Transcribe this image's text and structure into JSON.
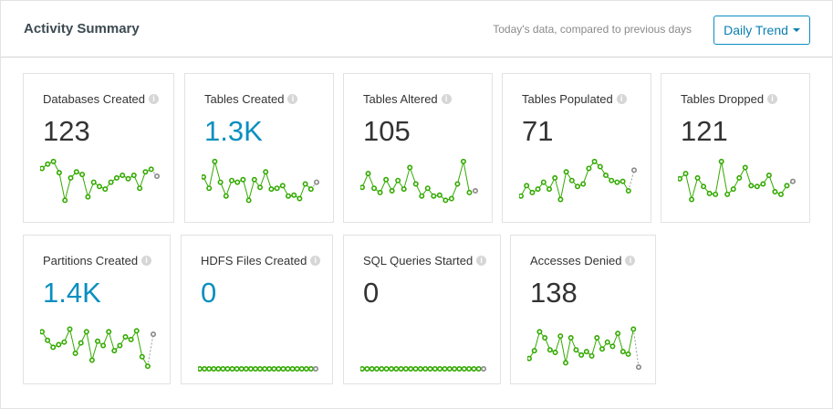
{
  "header": {
    "title": "Activity Summary",
    "subtitle": "Today's data, compared to previous days",
    "trend_button": "Daily Trend"
  },
  "colors": {
    "accent": "#0a8fbf",
    "spark_line": "#33aa00",
    "spark_today": "#888888"
  },
  "cards": [
    {
      "label": "Databases Created",
      "value": "123",
      "highlight": false,
      "trend": [
        45,
        50,
        53,
        40,
        8,
        34,
        41,
        38,
        12,
        29,
        24,
        21,
        29,
        34,
        37,
        33,
        37,
        22,
        41,
        44,
        36
      ]
    },
    {
      "label": "Tables Created",
      "value": "1.3K",
      "highlight": true,
      "trend": [
        35,
        22,
        53,
        29,
        13,
        31,
        29,
        32,
        8,
        32,
        23,
        41,
        21,
        22,
        25,
        13,
        14,
        10,
        27,
        21,
        29
      ]
    },
    {
      "label": "Tables Altered",
      "value": "105",
      "highlight": false,
      "trend": [
        23,
        39,
        22,
        17,
        32,
        19,
        31,
        21,
        46,
        27,
        13,
        22,
        13,
        14,
        8,
        10,
        27,
        53,
        17,
        19
      ]
    },
    {
      "label": "Tables Populated",
      "value": "71",
      "highlight": false,
      "trend": [
        13,
        25,
        17,
        21,
        29,
        21,
        34,
        9,
        41,
        31,
        24,
        27,
        45,
        53,
        47,
        37,
        31,
        29,
        30,
        19,
        43
      ]
    },
    {
      "label": "Tables Dropped",
      "value": "121",
      "highlight": false,
      "trend": [
        33,
        39,
        9,
        34,
        24,
        16,
        15,
        53,
        15,
        21,
        34,
        46,
        25,
        24,
        27,
        37,
        18,
        15,
        25,
        30
      ]
    },
    {
      "label": "Partitions Created",
      "value": "1.4K",
      "highlight": true,
      "trend": [
        43,
        33,
        25,
        28,
        31,
        46,
        18,
        30,
        43,
        10,
        32,
        27,
        43,
        21,
        27,
        37,
        34,
        44,
        14,
        3,
        40
      ]
    },
    {
      "label": "HDFS Files Created",
      "value": "0",
      "highlight": true,
      "trend": [
        0,
        0,
        0,
        0,
        0,
        0,
        0,
        0,
        0,
        0,
        0,
        0,
        0,
        0,
        0,
        0,
        0,
        0,
        0,
        0,
        0,
        0,
        0,
        0,
        0,
        0
      ]
    },
    {
      "label": "SQL Queries Started",
      "value": "0",
      "highlight": false,
      "trend": [
        0,
        0,
        0,
        0,
        0,
        0,
        0,
        0,
        0,
        0,
        0,
        0,
        0,
        0,
        0,
        0,
        0,
        0,
        0,
        0,
        0,
        0,
        0,
        0,
        0,
        0
      ]
    },
    {
      "label": "Accesses Denied",
      "value": "138",
      "highlight": false,
      "trend": [
        12,
        21,
        43,
        36,
        22,
        19,
        38,
        7,
        36,
        22,
        16,
        20,
        15,
        36,
        23,
        31,
        26,
        41,
        20,
        17,
        46,
        2
      ]
    }
  ]
}
